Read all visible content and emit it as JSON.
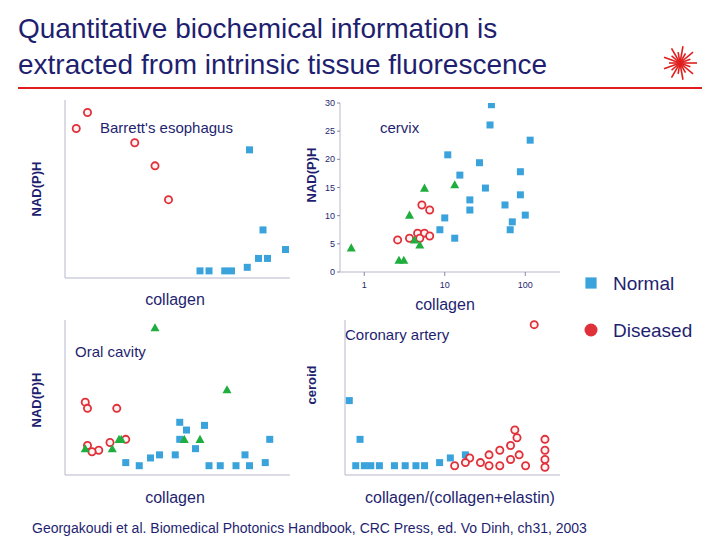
{
  "slide": {
    "title": [
      "Quantitative biochemical information is",
      "extracted from intrinsic tissue fluorescence"
    ],
    "citation": "Georgakoudi et al. Biomedical Photonics Handbook, CRC Press, ed. Vo Dinh, ch31, 2003"
  },
  "chart_data": [
    {
      "type": "scatter",
      "title": "Barrett's esophagus",
      "x_label": "collagen",
      "y_label": "NAD(P)H",
      "xlim": [
        0,
        1
      ],
      "ylim": [
        0,
        1
      ],
      "tick_labels": false,
      "series": [
        {
          "color": "#3aa3dc",
          "marker": "square",
          "x": [
            0.82,
            0.88,
            0.9,
            0.98,
            0.6,
            0.64,
            0.71,
            0.74,
            0.81,
            0.86
          ],
          "values": [
            0.72,
            0.27,
            0.11,
            0.16,
            0.04,
            0.04,
            0.04,
            0.04,
            0.06,
            0.11
          ]
        },
        {
          "color": "#e0303a",
          "marker": "circle",
          "x": [
            0.1,
            0.05,
            0.31,
            0.4,
            0.46
          ],
          "values": [
            0.93,
            0.84,
            0.76,
            0.63,
            0.44
          ]
        }
      ]
    },
    {
      "type": "scatter",
      "title": "cervix",
      "x_label": "collagen",
      "y_label": "NAD(P)H",
      "log": "x",
      "xlim": [
        0.5,
        270
      ],
      "ylim": [
        0,
        30
      ],
      "xticks": [
        1,
        10,
        100
      ],
      "yticks": [
        0,
        5,
        10,
        15,
        20,
        25,
        30
      ],
      "legend": "right",
      "series": [
        {
          "name": "Normal",
          "color": "#3aa3dc",
          "marker": "square",
          "x": [
            36.5,
            38,
            115,
            87,
            69,
            56,
            27,
            32,
            20.5,
            15.4,
            10.9,
            10,
            8.7,
            13.3,
            20.5,
            87,
            65,
            100
          ],
          "values": [
            26.1,
            29.7,
            23.4,
            13.7,
            8.9,
            11.9,
            19.4,
            14.9,
            11.0,
            17.2,
            20.8,
            9.6,
            7.5,
            6.0,
            12.8,
            17.8,
            7.5,
            10.1
          ]
        },
        {
          "name": "Diseased",
          "color": "#e0303a",
          "marker": "circle",
          "x": [
            2.6,
            3.65,
            4.6,
            5.6,
            6.5,
            5.2,
            6.5,
            4.9
          ],
          "values": [
            5.7,
            6.0,
            6.9,
            6.9,
            6.4,
            11.9,
            11.0,
            6.0
          ]
        },
        {
          "color": "#1fae3e",
          "marker": "triangle",
          "x": [
            0.69,
            2.7,
            3.1,
            3.65,
            5.6,
            13.3,
            4.2,
            4.9
          ],
          "values": [
            4.3,
            2.1,
            2.1,
            10.1,
            14.9,
            15.5,
            5.7,
            4.8
          ]
        }
      ]
    },
    {
      "type": "scatter",
      "title": "Oral cavity",
      "x_label": "collagen",
      "y_label": "NAD(P)H",
      "xlim": [
        0,
        1
      ],
      "ylim": [
        0,
        1
      ],
      "tick_labels": false,
      "series": [
        {
          "color": "#3aa3dc",
          "marker": "square",
          "x": [
            0.51,
            0.54,
            0.51,
            0.49,
            0.62,
            0.58,
            0.64,
            0.69,
            0.76,
            0.82,
            0.89,
            0.33,
            0.42,
            0.38,
            0.91,
            0.8,
            0.27
          ],
          "values": [
            0.34,
            0.29,
            0.23,
            0.13,
            0.32,
            0.17,
            0.06,
            0.06,
            0.06,
            0.06,
            0.08,
            0.06,
            0.13,
            0.11,
            0.23,
            0.13,
            0.08
          ]
        },
        {
          "color": "#e0303a",
          "marker": "circle",
          "x": [
            0.09,
            0.1,
            0.23,
            0.1,
            0.15,
            0.12,
            0.2,
            0.27
          ],
          "values": [
            0.47,
            0.43,
            0.43,
            0.19,
            0.16,
            0.15,
            0.21,
            0.23
          ]
        },
        {
          "color": "#1fae3e",
          "marker": "triangle",
          "x": [
            0.4,
            0.72,
            0.24,
            0.25,
            0.09,
            0.53,
            0.6,
            0.21
          ],
          "values": [
            0.95,
            0.55,
            0.23,
            0.23,
            0.17,
            0.23,
            0.23,
            0.17
          ]
        }
      ]
    },
    {
      "type": "scatter",
      "title": "Coronary artery",
      "x_label": "collagen/(collagen+elastin)",
      "y_label": "ceroid",
      "xlim": [
        0,
        1
      ],
      "ylim": [
        0,
        1
      ],
      "tick_labels": false,
      "series": [
        {
          "color": "#3aa3dc",
          "marker": "square",
          "x": [
            0.02,
            0.07,
            0.16,
            0.23,
            0.28,
            0.33,
            0.37,
            0.05,
            0.09,
            0.44,
            0.49,
            0.56,
            0.12
          ],
          "values": [
            0.48,
            0.23,
            0.06,
            0.06,
            0.06,
            0.06,
            0.06,
            0.06,
            0.06,
            0.08,
            0.11,
            0.13,
            0.06
          ]
        },
        {
          "color": "#e0303a",
          "marker": "circle",
          "x": [
            0.88,
            0.79,
            0.8,
            0.77,
            0.72,
            0.67,
            0.58,
            0.56,
            0.63,
            0.51,
            0.81,
            0.84,
            0.93,
            0.93,
            0.93,
            0.93,
            0.72,
            0.77,
            0.67
          ],
          "values": [
            0.97,
            0.29,
            0.24,
            0.19,
            0.16,
            0.13,
            0.11,
            0.08,
            0.08,
            0.06,
            0.13,
            0.06,
            0.23,
            0.16,
            0.1,
            0.05,
            0.06,
            0.1,
            0.06
          ]
        }
      ]
    }
  ]
}
